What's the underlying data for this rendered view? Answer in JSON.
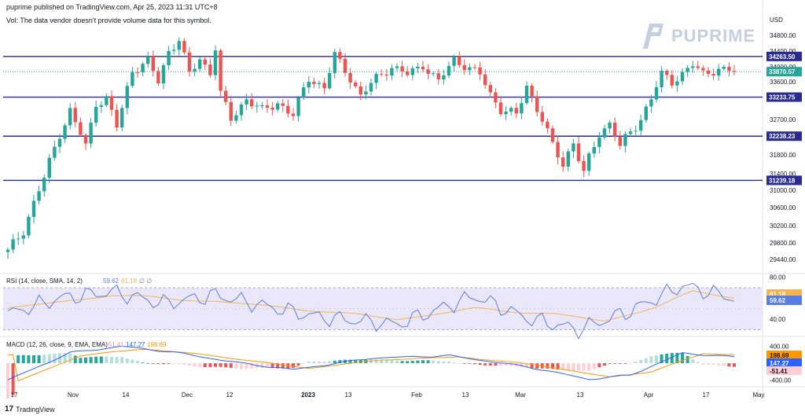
{
  "header": {
    "published": "puprime published on TradingView.com, Apr 25, 2023 11:31 UTC+8",
    "vol_notice": "Vol: The data vendor doesn't provide volume data for this symbol."
  },
  "brand": {
    "logo_text": "PUPRIME"
  },
  "footer": {
    "tv_label": "TradingView",
    "tv_glyph": "17"
  },
  "chart_data": {
    "type": "candlestick",
    "currency": "USD",
    "price_axis": {
      "ticks": [
        34800,
        34400,
        34000,
        33600,
        32700,
        32200,
        31800,
        31400,
        31000,
        30600,
        30200,
        29800,
        29440
      ],
      "labels": [
        "34800.00",
        "34400.00",
        "34000.00",
        "33600.00",
        "32700.00",
        "32200.00",
        "31800.00",
        "31400.00",
        "31000.00",
        "30600.00",
        "30200.00",
        "29800.00",
        "29440.00"
      ]
    },
    "price_levels": [
      {
        "value": 34263.5,
        "label": "34263.50"
      },
      {
        "value": 33233.75,
        "label": "33233.75"
      },
      {
        "value": 32238.23,
        "label": "32238.23"
      },
      {
        "value": 31239.18,
        "label": "31239.18"
      }
    ],
    "current_price": {
      "value": 33870.57,
      "label": "33870.57"
    },
    "time_axis": [
      "17",
      "Nov",
      "14",
      "Dec",
      "12",
      "2023",
      "13",
      "Feb",
      "13",
      "Mar",
      "13",
      "Apr",
      "17",
      "May"
    ],
    "candle_anchors": [
      [
        29600,
        0
      ],
      [
        30100,
        3
      ],
      [
        30700,
        5
      ],
      [
        31300,
        7
      ],
      [
        32300,
        10
      ],
      [
        32900,
        12
      ],
      [
        32000,
        15
      ],
      [
        33100,
        17
      ],
      [
        33200,
        19
      ],
      [
        32500,
        21
      ],
      [
        33900,
        24
      ],
      [
        34150,
        27
      ],
      [
        33600,
        29
      ],
      [
        34400,
        31
      ],
      [
        34700,
        33
      ],
      [
        33800,
        35
      ],
      [
        34200,
        37
      ],
      [
        33850,
        39
      ],
      [
        34500,
        40
      ],
      [
        33300,
        41
      ],
      [
        32700,
        43
      ],
      [
        33200,
        46
      ],
      [
        32900,
        49
      ],
      [
        33100,
        52
      ],
      [
        32800,
        55
      ],
      [
        33700,
        58
      ],
      [
        33450,
        61
      ],
      [
        34300,
        63
      ],
      [
        33700,
        66
      ],
      [
        33250,
        68
      ],
      [
        33700,
        71
      ],
      [
        34000,
        74
      ],
      [
        33800,
        77
      ],
      [
        34050,
        80
      ],
      [
        33600,
        83
      ],
      [
        34200,
        86
      ],
      [
        33950,
        89
      ],
      [
        33800,
        91
      ],
      [
        33300,
        93
      ],
      [
        32950,
        95
      ],
      [
        32800,
        98
      ],
      [
        33500,
        100
      ],
      [
        32700,
        103
      ],
      [
        32000,
        105
      ],
      [
        31600,
        107
      ],
      [
        32100,
        109
      ],
      [
        31400,
        111
      ],
      [
        32300,
        114
      ],
      [
        32600,
        116
      ],
      [
        32000,
        118
      ],
      [
        32500,
        121
      ],
      [
        33200,
        124
      ],
      [
        33800,
        126
      ],
      [
        33600,
        128
      ],
      [
        34050,
        132
      ],
      [
        33800,
        134
      ],
      [
        33950,
        137
      ],
      [
        33870,
        140
      ]
    ],
    "rsi": {
      "label": "RSI (14, close, SMA, 14, 2)",
      "value_label": "59.62",
      "sma_label": "61.18",
      "tail_label": "∅ ∅",
      "ticks": [
        80,
        40
      ],
      "tick_labels": [
        "80.00",
        "40.00"
      ],
      "upper": 70,
      "lower": 30,
      "range": [
        25,
        82
      ],
      "anchors": [
        [
          45,
          0
        ],
        [
          60,
          10
        ],
        [
          66,
          20
        ],
        [
          55,
          30
        ],
        [
          63,
          40
        ],
        [
          52,
          50
        ],
        [
          42,
          60
        ],
        [
          35,
          75
        ],
        [
          62,
          90
        ],
        [
          41,
          100
        ],
        [
          30,
          110
        ],
        [
          48,
          120
        ],
        [
          72,
          130
        ],
        [
          60,
          140
        ]
      ],
      "sma_anchors": [
        [
          50,
          0
        ],
        [
          63,
          20
        ],
        [
          57,
          40
        ],
        [
          48,
          60
        ],
        [
          40,
          75
        ],
        [
          50,
          90
        ],
        [
          45,
          105
        ],
        [
          38,
          115
        ],
        [
          52,
          125
        ],
        [
          66,
          132
        ],
        [
          61,
          140
        ]
      ]
    },
    "macd": {
      "label": "MACD (12, 26, close, 9, EMA, EMA)",
      "labels": [
        "-51.41",
        "147.27",
        "198.69"
      ],
      "ticks": [
        400,
        -400
      ],
      "tick_labels": [
        "400.00",
        "-400.00"
      ],
      "range": [
        -520,
        560
      ],
      "macd_anchors": [
        [
          -400,
          0
        ],
        [
          250,
          12
        ],
        [
          400,
          22
        ],
        [
          260,
          32
        ],
        [
          0,
          45
        ],
        [
          -150,
          55
        ],
        [
          120,
          70
        ],
        [
          180,
          85
        ],
        [
          -80,
          100
        ],
        [
          -380,
          112
        ],
        [
          -280,
          120
        ],
        [
          240,
          130
        ],
        [
          147,
          140
        ]
      ],
      "signal_anchors": [
        [
          -420,
          2
        ],
        [
          180,
          14
        ],
        [
          340,
          26
        ],
        [
          230,
          36
        ],
        [
          40,
          48
        ],
        [
          -120,
          58
        ],
        [
          80,
          72
        ],
        [
          150,
          87
        ],
        [
          -40,
          102
        ],
        [
          -330,
          116
        ],
        [
          -200,
          124
        ],
        [
          230,
          134
        ],
        [
          199,
          140
        ]
      ]
    },
    "colors": {
      "up": "#26a69a",
      "down": "#ef5350",
      "level": "#2a2b8f",
      "rsi": "#5b7ee5",
      "rsi_sma": "#f2b552",
      "rsi_band": "#ebe7fa",
      "macd": "#2962ff",
      "signal": "#ff9800",
      "current": "#26a69a"
    }
  }
}
